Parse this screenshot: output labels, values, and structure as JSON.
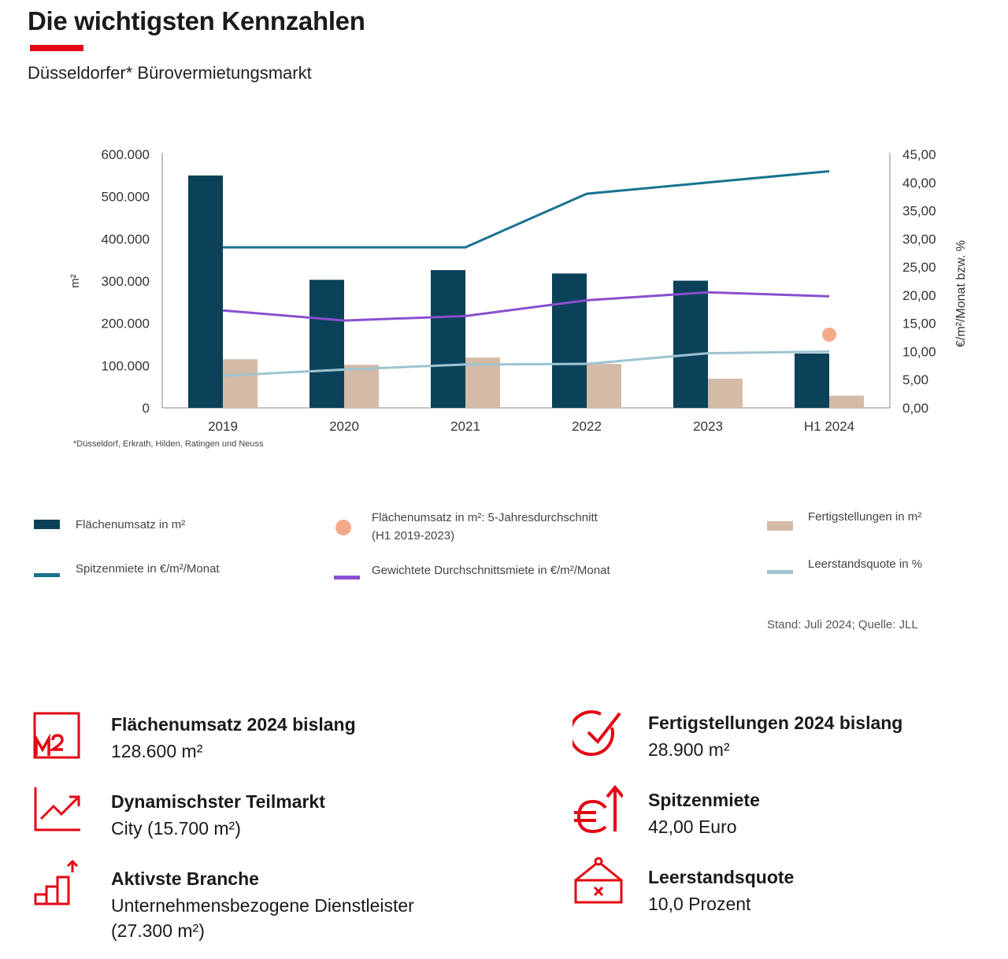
{
  "header": {
    "title": "Die wichtigsten Kennzahlen",
    "subtitle": "Düsseldorfer* Bürovermietungsmarkt"
  },
  "colors": {
    "accent_red": "#e30613",
    "bar_dark": "#0b4259",
    "bar_beige": "#d3bba8",
    "line_spitzen": "#18738f",
    "line_gewichtet": "#8a4fcf",
    "line_leerstand": "#9ec4d1",
    "dot_orange": "#f5a98b"
  },
  "chart_data": {
    "type": "bar",
    "categories": [
      "2019",
      "2020",
      "2021",
      "2022",
      "2023",
      "H1 2024"
    ],
    "ylabel": "m²",
    "y2label": "€/m²/Monat bzw. %",
    "ylim": [
      0,
      600000
    ],
    "y2lim": [
      0,
      45
    ],
    "yticks": [
      "0",
      "100.000",
      "200.000",
      "300.000",
      "400.000",
      "500.000",
      "600.000"
    ],
    "y2ticks": [
      "0,00",
      "5,00",
      "10,00",
      "15,00",
      "20,00",
      "25,00",
      "30,00",
      "35,00",
      "40,00",
      "45,00"
    ],
    "series": [
      {
        "name": "Flächenumsatz in m²",
        "type": "bar",
        "axis": "left",
        "values": [
          550000,
          303000,
          326000,
          318000,
          301000,
          128600
        ]
      },
      {
        "name": "Fertigstellungen in m²",
        "type": "bar",
        "axis": "left",
        "values": [
          115000,
          102000,
          119000,
          104000,
          69000,
          28900
        ]
      },
      {
        "name": "Spitzenmiete in €/m²/Monat",
        "type": "line",
        "axis": "right",
        "values": [
          28.5,
          28.5,
          28.5,
          38.0,
          40.0,
          42.0
        ]
      },
      {
        "name": "Gewichtete Durchschnittsmiete in €/m²/Monat",
        "type": "line",
        "axis": "right",
        "values": [
          17.3,
          15.5,
          16.3,
          19.1,
          20.5,
          19.8
        ]
      },
      {
        "name": "Leerstandsquote in %",
        "type": "line",
        "axis": "right",
        "values": [
          5.7,
          6.8,
          7.7,
          7.8,
          9.7,
          10.0
        ]
      },
      {
        "name": "Flächenumsatz in m²: 5-Jahresdurchschnitt (H1 2019-2023)",
        "type": "point",
        "axis": "right",
        "category": "H1 2024",
        "value": 13.0
      }
    ],
    "grid": false,
    "legend": "bottom"
  },
  "footnote": "*Düsseldorf, Erkrath, Hilden, Ratingen und Neuss",
  "legend": {
    "flaechenumsatz": "Flächenumsatz in m²",
    "durchschnitt_line1": "Flächenumsatz in m²: 5-Jahresdurchschnitt",
    "durchschnitt_line2": "(H1 2019-2023)",
    "fertigstellungen": "Fertigstellungen in m²",
    "spitzenmiete": "Spitzenmiete in €/m²/Monat",
    "gewichtet": "Gewichtete Durchschnittsmiete in €/m²/Monat",
    "leerstand": "Leerstandsquote in %"
  },
  "source": "Stand: Juli 2024; Quelle: JLL",
  "kpis": [
    {
      "icon": "m2-icon",
      "title": "Flächenumsatz 2024 bislang",
      "value": "128.600 m²"
    },
    {
      "icon": "chart-up-icon",
      "title": "Dynamischster Teilmarkt",
      "value": "City (15.700 m²)"
    },
    {
      "icon": "bar-steps-icon",
      "title": "Aktivste Branche",
      "value": "Unternehmensbezogene Dienstleister (27.300 m²)"
    },
    {
      "icon": "checkmark-circle-icon",
      "title": "Fertigstellungen 2024 bislang",
      "value": "28.900 m²"
    },
    {
      "icon": "euro-up-icon",
      "title": "Spitzenmiete",
      "value": "42,00 Euro"
    },
    {
      "icon": "vacancy-sign-icon",
      "title": "Leerstandsquote",
      "value": "10,0 Prozent"
    }
  ]
}
